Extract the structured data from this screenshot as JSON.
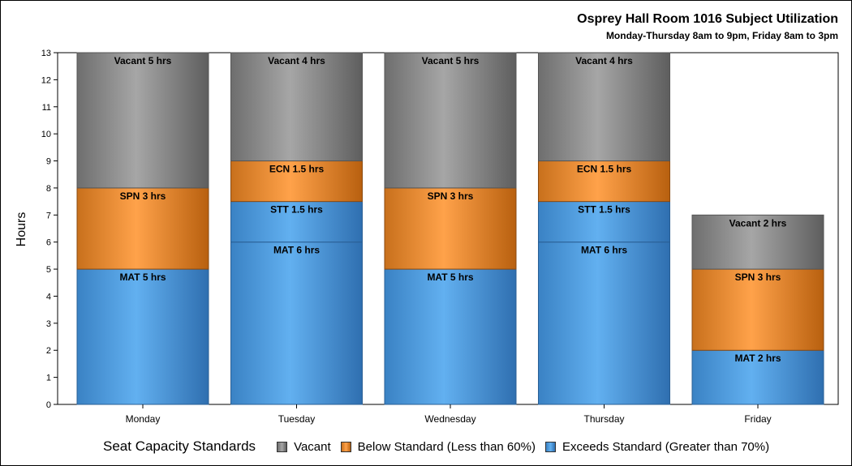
{
  "chart_data": {
    "type": "bar",
    "stacked": true,
    "title": "Osprey Hall Room 1016 Subject Utilization",
    "subtitle": "Monday-Thursday 8am to 9pm, Friday 8am to 3pm",
    "xlabel": "",
    "ylabel": "Hours",
    "ylim": [
      0,
      13
    ],
    "yticks": [
      0,
      1,
      2,
      3,
      4,
      5,
      6,
      7,
      8,
      9,
      10,
      11,
      12,
      13
    ],
    "grid": false,
    "legend_position": "bottom",
    "legend_title": "Seat Capacity Standards",
    "legend": [
      {
        "label": "Vacant",
        "color": "#8c8c8c"
      },
      {
        "label": "Below Standard (Less than 60%)",
        "color": "#f08a24"
      },
      {
        "label": "Exceeds Standard (Greater than 70%)",
        "color": "#4a9ee6"
      }
    ],
    "categories": [
      "Monday",
      "Tuesday",
      "Wednesday",
      "Thursday",
      "Friday"
    ],
    "bars": [
      {
        "category": "Monday",
        "segments": [
          {
            "status": "exceeds",
            "value": 5,
            "label": "MAT 5 hrs"
          },
          {
            "status": "below",
            "value": 3,
            "label": "SPN 3 hrs"
          },
          {
            "status": "vacant",
            "value": 5,
            "label": "Vacant 5 hrs"
          }
        ]
      },
      {
        "category": "Tuesday",
        "segments": [
          {
            "status": "exceeds",
            "value": 6,
            "label": "MAT 6 hrs"
          },
          {
            "status": "exceeds",
            "value": 1.5,
            "label": "STT 1.5 hrs"
          },
          {
            "status": "below",
            "value": 1.5,
            "label": "ECN 1.5 hrs"
          },
          {
            "status": "vacant",
            "value": 4,
            "label": "Vacant 4 hrs"
          }
        ]
      },
      {
        "category": "Wednesday",
        "segments": [
          {
            "status": "exceeds",
            "value": 5,
            "label": "MAT 5 hrs"
          },
          {
            "status": "below",
            "value": 3,
            "label": "SPN 3 hrs"
          },
          {
            "status": "vacant",
            "value": 5,
            "label": "Vacant 5 hrs"
          }
        ]
      },
      {
        "category": "Thursday",
        "segments": [
          {
            "status": "exceeds",
            "value": 6,
            "label": "MAT 6 hrs"
          },
          {
            "status": "exceeds",
            "value": 1.5,
            "label": "STT 1.5 hrs"
          },
          {
            "status": "below",
            "value": 1.5,
            "label": "ECN 1.5 hrs"
          },
          {
            "status": "vacant",
            "value": 4,
            "label": "Vacant 4 hrs"
          }
        ]
      },
      {
        "category": "Friday",
        "segments": [
          {
            "status": "exceeds",
            "value": 2,
            "label": "MAT 2 hrs"
          },
          {
            "status": "below",
            "value": 3,
            "label": "SPN 3 hrs"
          },
          {
            "status": "vacant",
            "value": 2,
            "label": "Vacant 2 hrs"
          }
        ]
      }
    ]
  }
}
